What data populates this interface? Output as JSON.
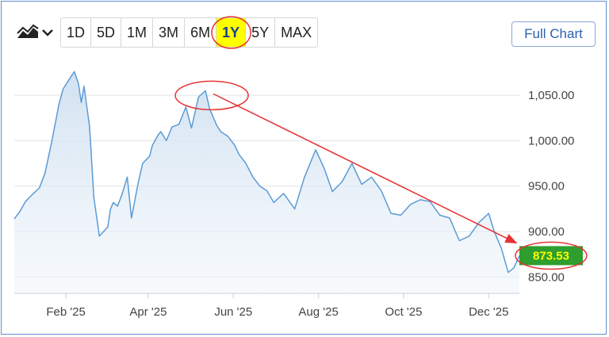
{
  "toolbar": {
    "chart_type_icon": "area-chart-icon",
    "dropdown_icon": "chevron-down-icon",
    "ranges": [
      "1D",
      "5D",
      "1M",
      "3M",
      "6M",
      "1Y",
      "5Y",
      "MAX"
    ],
    "active_range": "1Y",
    "full_chart_label": "Full Chart"
  },
  "colors": {
    "line": "#5b9bd5",
    "area_top": "#cfe0f0",
    "grid": "#dfe3e8",
    "annotation": "#e53333",
    "price_badge": "#2e9e2e",
    "highlight": "#ffff00"
  },
  "price_label": "873.53",
  "chart_data": {
    "type": "area",
    "title": "",
    "xlabel": "",
    "ylabel": "",
    "ylim": [
      832,
      1085
    ],
    "grid": "horizontal",
    "y_ticks": [
      "850.00",
      "900.00",
      "950.00",
      "1,000.00",
      "1,050.00"
    ],
    "x_ticks": [
      "Feb '25",
      "Apr '25",
      "Jun '25",
      "Aug '25",
      "Oct '25",
      "Dec '25"
    ],
    "series": [
      {
        "x": [
          "2024-12-26",
          "2024-12-30",
          "2025-01-03",
          "2025-01-08",
          "2025-01-13",
          "2025-01-17",
          "2025-01-22",
          "2025-01-27",
          "2025-01-30",
          "2025-02-04",
          "2025-02-07",
          "2025-02-10",
          "2025-02-12",
          "2025-02-14",
          "2025-02-18",
          "2025-02-21",
          "2025-02-25",
          "2025-02-28",
          "2025-03-03",
          "2025-03-05",
          "2025-03-07",
          "2025-03-10",
          "2025-03-13",
          "2025-03-17",
          "2025-03-20",
          "2025-03-25",
          "2025-03-28",
          "2025-04-02",
          "2025-04-04",
          "2025-04-08",
          "2025-04-10",
          "2025-04-14",
          "2025-04-18",
          "2025-04-23",
          "2025-04-28",
          "2025-05-02",
          "2025-05-07",
          "2025-05-12",
          "2025-05-15",
          "2025-05-20",
          "2025-05-23",
          "2025-05-28",
          "2025-06-02",
          "2025-06-05",
          "2025-06-10",
          "2025-06-15",
          "2025-06-20",
          "2025-06-25",
          "2025-06-30",
          "2025-07-07",
          "2025-07-15",
          "2025-07-22",
          "2025-07-30",
          "2025-08-05",
          "2025-08-11",
          "2025-08-18",
          "2025-08-25",
          "2025-09-01",
          "2025-09-08",
          "2025-09-15",
          "2025-09-22",
          "2025-09-29",
          "2025-10-06",
          "2025-10-13",
          "2025-10-20",
          "2025-10-27",
          "2025-11-03",
          "2025-11-10",
          "2025-11-17",
          "2025-11-24",
          "2025-12-01",
          "2025-12-05",
          "2025-12-10",
          "2025-12-15",
          "2025-12-19",
          "2025-12-23"
        ],
        "values": [
          914,
          922,
          933,
          941,
          948,
          964,
          1000,
          1040,
          1057,
          1069,
          1076,
          1063,
          1042,
          1060,
          1015,
          938,
          895,
          900,
          905,
          925,
          932,
          928,
          940,
          960,
          915,
          955,
          975,
          983,
          995,
          1006,
          1010,
          1000,
          1015,
          1018,
          1037,
          1014,
          1048,
          1055,
          1035,
          1017,
          1010,
          1005,
          995,
          985,
          975,
          960,
          950,
          945,
          932,
          942,
          925,
          960,
          990,
          970,
          944,
          955,
          975,
          952,
          960,
          945,
          920,
          918,
          930,
          935,
          933,
          918,
          915,
          890,
          895,
          910,
          920,
          900,
          882,
          855,
          860,
          873.53
        ]
      }
    ]
  }
}
